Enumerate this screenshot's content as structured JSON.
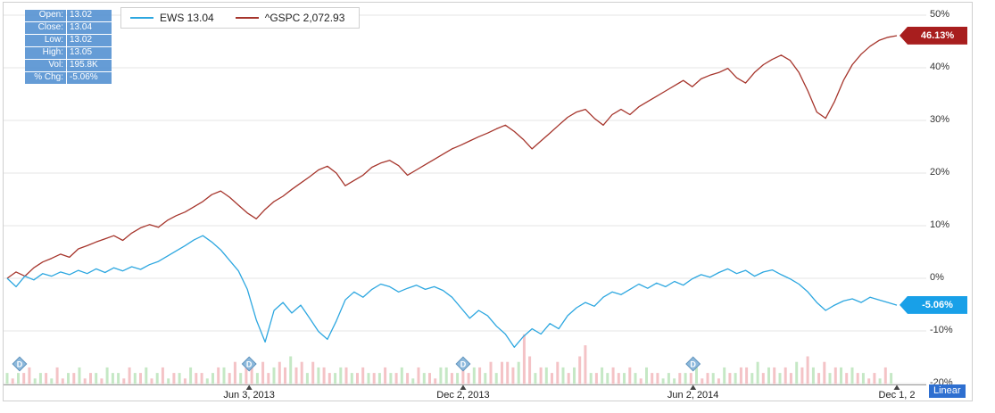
{
  "quote_info": {
    "rows": [
      {
        "label": "Open:",
        "value": "13.02"
      },
      {
        "label": "Close:",
        "value": "13.04"
      },
      {
        "label": "Low:",
        "value": "13.02"
      },
      {
        "label": "High:",
        "value": "13.05"
      },
      {
        "label": "Vol:",
        "value": "195.8K"
      },
      {
        "label": "% Chg:",
        "value": "-5.06%"
      }
    ],
    "chip_color": "#5894d2"
  },
  "legend": {
    "items": [
      {
        "id": "ews",
        "label": "EWS 13.04",
        "color": "#2da7e0"
      },
      {
        "id": "gspc",
        "label": "^GSPC 2,072.93",
        "color": "#a6352c"
      }
    ]
  },
  "chart_data": {
    "type": "line",
    "title": "",
    "xlabel": "",
    "ylabel": "",
    "ylim": [
      -20,
      50
    ],
    "grid": true,
    "legend_position": "top-left",
    "scale_label": "Linear",
    "y_ticks": [
      {
        "v": 50,
        "label": "50%"
      },
      {
        "v": 40,
        "label": "40%"
      },
      {
        "v": 30,
        "label": "30%"
      },
      {
        "v": 20,
        "label": "20%"
      },
      {
        "v": 10,
        "label": "10%"
      },
      {
        "v": 0,
        "label": "0%"
      },
      {
        "v": -10,
        "label": "-10%"
      },
      {
        "v": -20,
        "label": "-20%"
      }
    ],
    "x_ticks": [
      {
        "label": "Jun 3, 2013",
        "pos": 0.272
      },
      {
        "label": "Dec 2, 2013",
        "pos": 0.5125
      },
      {
        "label": "Jun 2, 2014",
        "pos": 0.771
      },
      {
        "label": "Dec 1, 2",
        "pos": 1.0
      }
    ],
    "series": [
      {
        "name": "EWS",
        "color": "#2da7e0",
        "end_label": "-5.06%",
        "end_label_bg": "#18a0e8",
        "values": [
          0,
          -1.6,
          0.4,
          -0.3,
          0.9,
          0.4,
          1.2,
          0.7,
          1.5,
          0.9,
          1.8,
          1.1,
          2,
          1.4,
          2.2,
          1.7,
          2.6,
          3.2,
          4.2,
          5.2,
          6.2,
          7.3,
          8.1,
          6.9,
          5.4,
          3.4,
          1.4,
          -2.1,
          -7.9,
          -12.1,
          -6.1,
          -4.6,
          -6.6,
          -5.1,
          -7.6,
          -10.1,
          -11.6,
          -8.1,
          -4.1,
          -2.6,
          -3.6,
          -2.1,
          -1.1,
          -1.6,
          -2.6,
          -1.9,
          -1.3,
          -2.1,
          -1.6,
          -2.3,
          -3.6,
          -5.6,
          -7.6,
          -6.1,
          -7.1,
          -9.1,
          -10.6,
          -13.1,
          -11.1,
          -9.6,
          -10.6,
          -8.6,
          -9.6,
          -7.1,
          -5.6,
          -4.6,
          -5.3,
          -3.6,
          -2.6,
          -3.1,
          -2.1,
          -1.1,
          -1.9,
          -0.9,
          -1.6,
          -0.6,
          -1.3,
          -0.1,
          0.7,
          0.2,
          1.1,
          1.8,
          0.9,
          1.5,
          0.4,
          1.2,
          1.6,
          0.7,
          -0.1,
          -1.1,
          -2.6,
          -4.6,
          -6.1,
          -5.1,
          -4.3,
          -3.9,
          -4.6,
          -3.6,
          -4.1,
          -4.6,
          -5.1
        ]
      },
      {
        "name": "^GSPC",
        "color": "#a6352c",
        "end_label": "46.13%",
        "end_label_bg": "#a81e1e",
        "values": [
          0,
          1.2,
          0.4,
          2,
          3.1,
          3.8,
          4.6,
          4,
          5.6,
          6.2,
          6.9,
          7.5,
          8.1,
          7.2,
          8.6,
          9.6,
          10.2,
          9.7,
          11,
          11.9,
          12.6,
          13.6,
          14.6,
          15.9,
          16.6,
          15.4,
          13.9,
          12.4,
          11.3,
          13.1,
          14.6,
          15.6,
          16.9,
          18.1,
          19.3,
          20.6,
          21.3,
          20,
          17.6,
          18.6,
          19.6,
          21.1,
          21.9,
          22.4,
          21.4,
          19.6,
          20.6,
          21.6,
          22.6,
          23.6,
          24.6,
          25.3,
          26.1,
          26.9,
          27.6,
          28.4,
          29.1,
          27.9,
          26.4,
          24.6,
          26.1,
          27.6,
          29.1,
          30.6,
          31.6,
          32.1,
          30.4,
          29.1,
          31.1,
          32.1,
          31.1,
          32.6,
          33.6,
          34.6,
          35.6,
          36.6,
          37.6,
          36.4,
          37.9,
          38.6,
          39.1,
          39.9,
          38.1,
          37.1,
          39.1,
          40.6,
          41.6,
          42.4,
          41.4,
          39.1,
          35.6,
          31.6,
          30.4,
          33.6,
          37.6,
          40.6,
          42.6,
          44.1,
          45.2,
          45.8,
          46.1
        ]
      }
    ],
    "volume_bars": {
      "heights": "2122312213122312213221322312312213221233242332423435342433223322322232232132213322423324244349523324323572232322321322121222312213223324233232435324233232212132",
      "colors": "grgrrggrgrrgrgrrgrgggrrgrgrgrgrgrgrrggrgrrgrrgrrgrrgrrgrgrrggrgrrgrgrgrgrgrgrrggrgrrgrgrgrrrgrrgrgrrgrgrrgrggrrgrgrgrrgggrgrgrrgrgrgrrggrgrgrrgrrgrrgrgrgrgrrgrg",
      "color_map": {
        "r": "#f3b9bd",
        "g": "#bce4bc"
      }
    },
    "dividend_markers": {
      "glyph": "D",
      "positions": [
        0.014,
        0.272,
        0.5125,
        0.771
      ],
      "fill": "#8db9dc",
      "border": "#5f93bd"
    }
  }
}
